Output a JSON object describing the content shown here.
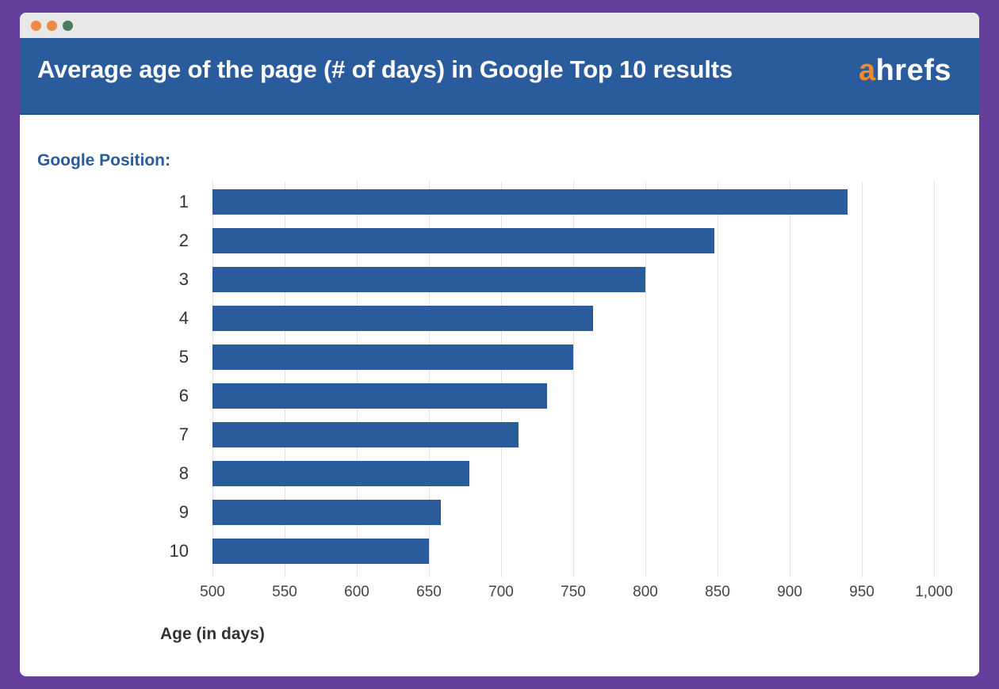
{
  "window": {
    "controls": [
      {
        "name": "close-dot",
        "color": "#ee8a44"
      },
      {
        "name": "minimize-dot",
        "color": "#ee8a44"
      },
      {
        "name": "maximize-dot",
        "color": "#4e7a5c"
      }
    ],
    "frame_background": "#653f9c"
  },
  "header": {
    "title": "Average age of the page (# of days) in Google Top 10 results",
    "logo_accent": "a",
    "logo_rest": "hrefs",
    "background": "#2a5b9c",
    "logo_accent_color": "#f18a2b"
  },
  "chart": {
    "y_caption": "Google Position:",
    "x_caption": "Age (in days)",
    "bar_color": "#2a5b9c"
  },
  "chart_data": {
    "type": "bar",
    "orientation": "horizontal",
    "title": "Average age of the page (# of days) in Google Top 10 results",
    "xlabel": "Age (in days)",
    "ylabel": "Google Position:",
    "categories": [
      "1",
      "2",
      "3",
      "4",
      "5",
      "6",
      "7",
      "8",
      "9",
      "10"
    ],
    "values": [
      940,
      848,
      800,
      764,
      750,
      732,
      712,
      678,
      658,
      650
    ],
    "xlim": [
      500,
      1000
    ],
    "xticks": [
      500,
      550,
      600,
      650,
      700,
      750,
      800,
      850,
      900,
      950,
      1000
    ],
    "xtick_labels": [
      "500",
      "550",
      "600",
      "650",
      "700",
      "750",
      "800",
      "850",
      "900",
      "950",
      "1,000"
    ],
    "grid": "vertical",
    "legend": null
  }
}
